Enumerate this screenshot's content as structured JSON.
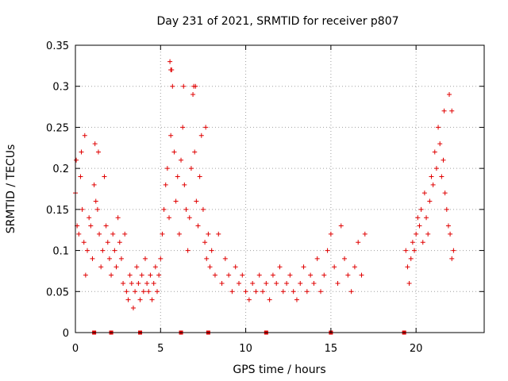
{
  "chart_data": {
    "type": "scatter",
    "title": "Day 231 of 2021, SRMTID for receiver p807",
    "xlabel": "GPS time / hours",
    "ylabel": "SRMTID / TECUs",
    "xlim": [
      0,
      24
    ],
    "ylim": [
      0,
      0.35
    ],
    "xticks": [
      0,
      5,
      10,
      15,
      20
    ],
    "yticks": [
      0,
      0.05,
      0.1,
      0.15,
      0.2,
      0.25,
      0.3,
      0.35
    ],
    "xtick_labels": [
      "0",
      "5",
      "10",
      "15",
      "20"
    ],
    "ytick_labels": [
      "0",
      "0.05",
      "0.1",
      "0.15",
      "0.2",
      "0.25",
      "0.3",
      "0.35"
    ],
    "grid": true,
    "marker": "+",
    "color": "#e00000",
    "series": [
      {
        "name": "SRMTID",
        "x": [
          0.0,
          0.1,
          0.2,
          0.3,
          0.4,
          0.5,
          0.6,
          0.7,
          0.8,
          0.9,
          1.0,
          1.1,
          1.2,
          1.3,
          1.4,
          1.5,
          1.6,
          1.7,
          1.8,
          1.9,
          2.0,
          2.1,
          2.2,
          2.3,
          2.4,
          2.5,
          2.6,
          2.7,
          2.8,
          2.9,
          3.0,
          3.1,
          3.2,
          3.3,
          3.4,
          3.5,
          3.6,
          3.7,
          3.8,
          3.9,
          4.0,
          4.1,
          4.2,
          4.3,
          4.4,
          4.5,
          4.6,
          4.7,
          4.8,
          4.9,
          5.0,
          5.1,
          5.2,
          5.3,
          5.4,
          5.5,
          5.6,
          5.7,
          5.8,
          5.9,
          6.0,
          6.1,
          6.2,
          6.3,
          6.4,
          6.5,
          6.6,
          6.7,
          6.8,
          6.9,
          7.0,
          7.1,
          7.2,
          7.3,
          7.4,
          7.5,
          7.6,
          7.7,
          7.8,
          7.9,
          8.0,
          8.2,
          8.4,
          8.6,
          8.8,
          9.0,
          9.2,
          9.4,
          9.6,
          9.8,
          10.0,
          10.2,
          10.4,
          10.6,
          10.8,
          11.0,
          11.2,
          11.4,
          11.6,
          11.8,
          12.0,
          12.2,
          12.4,
          12.6,
          12.8,
          13.0,
          13.2,
          13.4,
          13.6,
          13.8,
          14.0,
          14.2,
          14.4,
          14.6,
          14.8,
          15.0,
          15.2,
          15.4,
          15.6,
          15.8,
          16.0,
          16.2,
          16.4,
          16.6,
          16.8,
          17.0,
          19.4,
          19.5,
          19.6,
          19.7,
          19.8,
          19.9,
          20.0,
          20.1,
          20.2,
          20.3,
          20.4,
          20.5,
          20.6,
          20.7,
          20.8,
          20.9,
          21.0,
          21.1,
          21.2,
          21.3,
          21.4,
          21.5,
          21.6,
          21.7,
          21.8,
          21.9,
          22.0,
          22.1,
          22.2,
          0.05,
          0.35,
          0.55,
          1.15,
          1.35,
          5.55,
          5.6,
          5.65,
          6.35,
          6.95,
          7.05,
          7.65,
          21.65,
          21.95,
          22.1
        ],
        "y": [
          0.17,
          0.13,
          0.12,
          0.19,
          0.15,
          0.11,
          0.07,
          0.1,
          0.14,
          0.13,
          0.09,
          0.18,
          0.16,
          0.15,
          0.12,
          0.08,
          0.1,
          0.19,
          0.13,
          0.11,
          0.09,
          0.07,
          0.12,
          0.1,
          0.08,
          0.14,
          0.11,
          0.09,
          0.06,
          0.12,
          0.05,
          0.04,
          0.07,
          0.06,
          0.03,
          0.05,
          0.08,
          0.06,
          0.04,
          0.07,
          0.05,
          0.09,
          0.06,
          0.05,
          0.07,
          0.04,
          0.06,
          0.08,
          0.05,
          0.07,
          0.09,
          0.12,
          0.15,
          0.18,
          0.2,
          0.14,
          0.24,
          0.3,
          0.22,
          0.16,
          0.19,
          0.12,
          0.21,
          0.25,
          0.18,
          0.15,
          0.1,
          0.14,
          0.2,
          0.29,
          0.22,
          0.16,
          0.13,
          0.19,
          0.24,
          0.15,
          0.11,
          0.09,
          0.12,
          0.08,
          0.1,
          0.07,
          0.12,
          0.06,
          0.09,
          0.07,
          0.05,
          0.08,
          0.06,
          0.07,
          0.05,
          0.04,
          0.06,
          0.05,
          0.07,
          0.05,
          0.06,
          0.04,
          0.07,
          0.06,
          0.08,
          0.05,
          0.06,
          0.07,
          0.05,
          0.04,
          0.06,
          0.08,
          0.05,
          0.07,
          0.06,
          0.09,
          0.05,
          0.07,
          0.1,
          0.12,
          0.08,
          0.06,
          0.13,
          0.09,
          0.07,
          0.05,
          0.08,
          0.11,
          0.07,
          0.12,
          0.1,
          0.08,
          0.06,
          0.09,
          0.11,
          0.1,
          0.12,
          0.14,
          0.13,
          0.15,
          0.11,
          0.17,
          0.14,
          0.12,
          0.16,
          0.19,
          0.18,
          0.22,
          0.2,
          0.25,
          0.23,
          0.19,
          0.21,
          0.17,
          0.15,
          0.13,
          0.12,
          0.09,
          0.1,
          0.21,
          0.22,
          0.24,
          0.23,
          0.22,
          0.33,
          0.32,
          0.32,
          0.3,
          0.3,
          0.3,
          0.25,
          0.27,
          0.29,
          0.27
        ]
      }
    ],
    "x_markers": [
      1.1,
      2.1,
      3.8,
      6.2,
      7.8,
      11.2,
      15.0,
      19.3
    ]
  }
}
